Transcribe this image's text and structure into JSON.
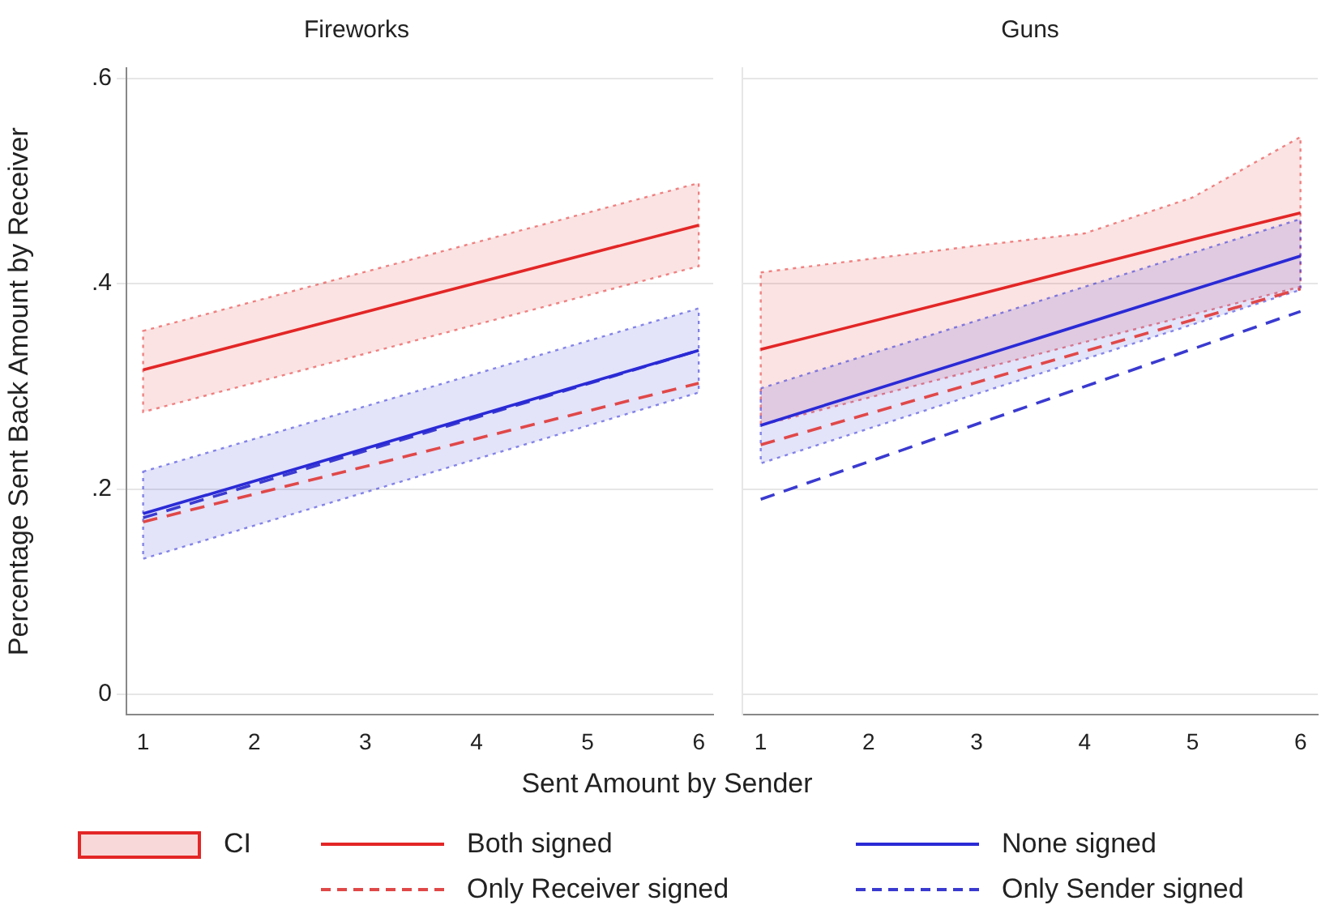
{
  "chart_data": [
    {
      "type": "line",
      "title": "Fireworks",
      "xlabel": "Sent Amount by Sender",
      "ylabel": "Percentage Sent Back Amount by Receiver",
      "xlim": [
        0.85,
        6.13
      ],
      "xticks": [
        1,
        2,
        3,
        4,
        5,
        6
      ],
      "ylim": [
        -0.02,
        0.61
      ],
      "yticks": [
        {
          "value": 0,
          "label": "0"
        },
        {
          "value": 0.2,
          "label": ".2"
        },
        {
          "value": 0.4,
          "label": ".4"
        },
        {
          "value": 0.6,
          "label": ".6"
        }
      ],
      "grid": "y",
      "legend": "bottom",
      "annotations": [
        "CI"
      ],
      "series": [
        {
          "name": "Both signed",
          "color": "#e32626",
          "line_style": "solid",
          "x": [
            1,
            6
          ],
          "values": [
            0.316,
            0.457
          ],
          "lower": [
            0.275,
            0.417
          ],
          "upper": [
            0.354,
            0.498
          ]
        },
        {
          "name": "None signed",
          "color": "#2a2ad6",
          "line_style": "solid",
          "x": [
            1,
            6
          ],
          "values": [
            0.176,
            0.335
          ],
          "lower": [
            0.132,
            0.294
          ],
          "upper": [
            0.217,
            0.376
          ]
        },
        {
          "name": "Only Receiver signed",
          "color": "#e04848",
          "line_style": "dashed",
          "x": [
            1,
            6
          ],
          "values": [
            0.168,
            0.303
          ]
        },
        {
          "name": "Only Sender signed",
          "color": "#3a3ad0",
          "line_style": "dashed",
          "x": [
            1,
            6
          ],
          "values": [
            0.172,
            0.335
          ]
        }
      ]
    },
    {
      "type": "line",
      "title": "Guns",
      "xlim": [
        0.83,
        6.16
      ],
      "xticks": [
        1,
        2,
        3,
        4,
        5,
        6
      ],
      "ylim": [
        -0.02,
        0.61
      ],
      "yticks": [
        0,
        0.2,
        0.4,
        0.6
      ],
      "grid": "y",
      "tick_labels": "x",
      "series": [
        {
          "color": "#e32626",
          "line_style": "solid",
          "x": [
            1,
            3,
            4,
            5,
            6
          ],
          "values": [
            0.336,
            0.389,
            0.416,
            0.443,
            0.469
          ],
          "lower": [
            0.262,
            0.316,
            0.343,
            0.37,
            0.397
          ],
          "upper": [
            0.411,
            0.437,
            0.449,
            0.484,
            0.543
          ]
        },
        {
          "color": "#2a2ad6",
          "line_style": "solid",
          "x": [
            1,
            6
          ],
          "values": [
            0.262,
            0.427
          ],
          "lower": [
            0.225,
            0.394
          ],
          "upper": [
            0.298,
            0.463
          ]
        },
        {
          "color": "#e04848",
          "line_style": "dashed",
          "x": [
            1,
            6
          ],
          "values": [
            0.243,
            0.395
          ]
        },
        {
          "color": "#3a3ad0",
          "line_style": "dashed",
          "x": [
            1,
            6
          ],
          "values": [
            0.19,
            0.373
          ]
        }
      ]
    }
  ]
}
